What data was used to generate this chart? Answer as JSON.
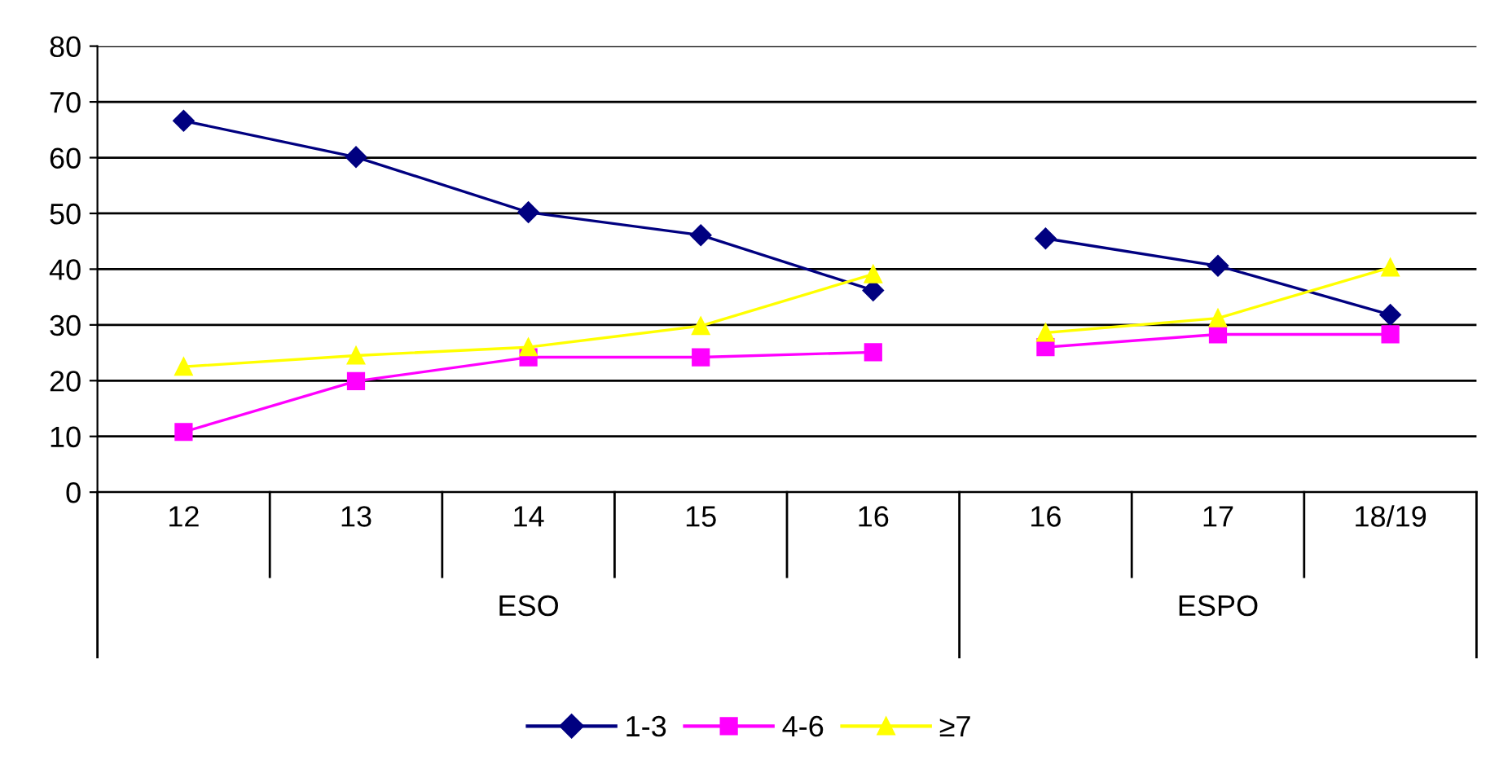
{
  "chart_data": {
    "type": "line",
    "categories": [
      "12",
      "13",
      "14",
      "15",
      "16",
      "16",
      "17",
      "18/19"
    ],
    "series": [
      {
        "name": "1-3",
        "color": "#000080",
        "marker": "diamond",
        "values": [
          66.6,
          60.1,
          50.2,
          46.1,
          36.2,
          null,
          null,
          null
        ]
      },
      {
        "color": "#000080",
        "marker": "diamond",
        "values": [
          null,
          null,
          null,
          null,
          null,
          45.5,
          40.6,
          31.8
        ]
      },
      {
        "name": "4-6",
        "color": "#ff00ff",
        "marker": "square",
        "values": [
          10.8,
          19.9,
          24.2,
          24.2,
          25.1,
          null,
          null,
          null
        ]
      },
      {
        "color": "#ff00ff",
        "marker": "square",
        "values": [
          null,
          null,
          null,
          null,
          null,
          26,
          28.3,
          28.3
        ]
      },
      {
        "name": "≥7",
        "color": "#ffff00",
        "marker": "triangle",
        "values": [
          22.5,
          24.5,
          26,
          29.8,
          39.1,
          null,
          null,
          null
        ]
      },
      {
        "color": "#ffff00",
        "marker": "triangle",
        "values": [
          null,
          null,
          null,
          null,
          null,
          28.6,
          31.2,
          40.3
        ]
      }
    ],
    "annotations": [
      "ESO",
      "ESPO"
    ],
    "ylim": [
      0,
      80
    ],
    "yticks": [
      0,
      10,
      20,
      30,
      40,
      50,
      60,
      70,
      80
    ],
    "grid": "y",
    "legend": "bottom"
  }
}
